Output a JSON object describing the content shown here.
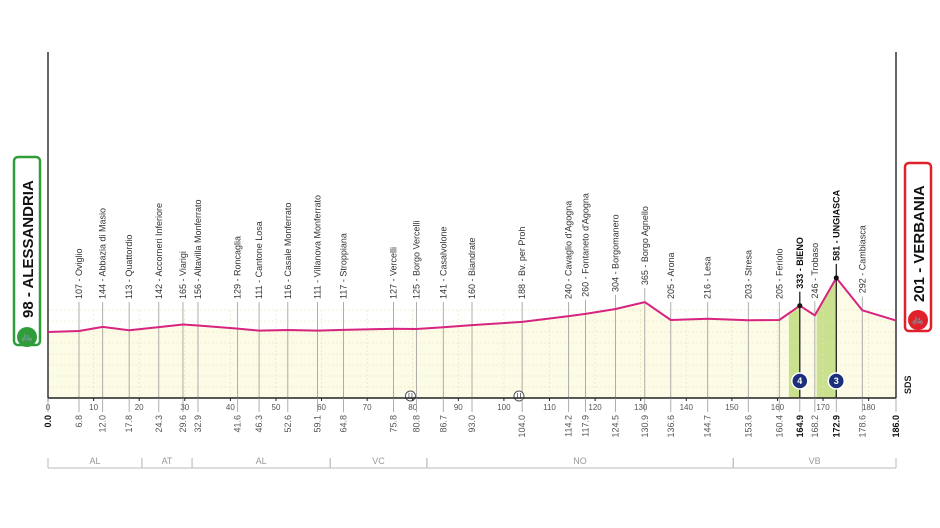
{
  "chart_data": {
    "type": "area",
    "xlabel": "",
    "ylabel": "",
    "xlim": [
      0,
      186
    ],
    "x_ticks": [
      0,
      10,
      20,
      30,
      40,
      50,
      60,
      70,
      80,
      90,
      100,
      110,
      120,
      130,
      140,
      150,
      160,
      170,
      180
    ],
    "grid": true,
    "line_color": "#d6247f",
    "fill_color": "#fbfbe6",
    "climb_fill_color": "#c9e08f",
    "start": {
      "label": "98 - ALESSANDRIA",
      "km": 0.0,
      "elevation": 98,
      "color": "#2e9d3a"
    },
    "finish": {
      "label": "201 - VERBANIA",
      "km": 186.0,
      "elevation": 201,
      "color": "#e0202a"
    },
    "points": [
      {
        "km": 0.0,
        "km_label": "0.0",
        "elevation": 98,
        "name": "",
        "bold": true
      },
      {
        "km": 6.8,
        "km_label": "6.8",
        "elevation": 107,
        "name": "107 - Oviglio"
      },
      {
        "km": 12.0,
        "km_label": "12.0",
        "elevation": 144,
        "name": "144 - Abbazia di Masio"
      },
      {
        "km": 17.8,
        "km_label": "17.8",
        "elevation": 113,
        "name": "113 - Quattordio"
      },
      {
        "km": 24.3,
        "km_label": "24.3",
        "elevation": 142,
        "name": "142 - Accorneri Inferiore"
      },
      {
        "km": 29.6,
        "km_label": "29.6",
        "elevation": 165,
        "name": "165 - Viarigi"
      },
      {
        "km": 32.9,
        "km_label": "32.9",
        "elevation": 156,
        "name": "156 - Altavilla Monferrato"
      },
      {
        "km": 41.6,
        "km_label": "41.6",
        "elevation": 129,
        "name": "129 - Roncaglia"
      },
      {
        "km": 46.3,
        "km_label": "46.3",
        "elevation": 111,
        "name": "111 - Cantone Losa"
      },
      {
        "km": 52.6,
        "km_label": "52.6",
        "elevation": 116,
        "name": "116 - Casale Monferrato"
      },
      {
        "km": 59.1,
        "km_label": "59.1",
        "elevation": 111,
        "name": "111 - Villanova Monferrato"
      },
      {
        "km": 64.8,
        "km_label": "64.8",
        "elevation": 117,
        "name": "117 - Stroppiana"
      },
      {
        "km": 75.8,
        "km_label": "75.8",
        "elevation": 127,
        "name": "127 - Vercelli"
      },
      {
        "km": 80.8,
        "km_label": "80.8",
        "elevation": 125,
        "name": "125 - Borgo Vercelli"
      },
      {
        "km": 86.7,
        "km_label": "86.7",
        "elevation": 141,
        "name": "141 - Casalvolone"
      },
      {
        "km": 93.0,
        "km_label": "93.0",
        "elevation": 160,
        "name": "160 - Biandrate"
      },
      {
        "km": 104.0,
        "km_label": "104.0",
        "elevation": 188,
        "name": "188 - Bv. per Proh"
      },
      {
        "km": 114.2,
        "km_label": "114.2",
        "elevation": 240,
        "name": "240 - Cavaglio d'Agogna"
      },
      {
        "km": 117.9,
        "km_label": "117.9",
        "elevation": 260,
        "name": "260 - Fontaneto d'Agogna"
      },
      {
        "km": 124.5,
        "km_label": "124.5",
        "elevation": 304,
        "name": "304 - Borgomanero"
      },
      {
        "km": 130.9,
        "km_label": "130.9",
        "elevation": 365,
        "name": "365 - Borgo Agnello"
      },
      {
        "km": 136.6,
        "km_label": "136.6",
        "elevation": 205,
        "name": "205 - Arona"
      },
      {
        "km": 144.7,
        "km_label": "144.7",
        "elevation": 216,
        "name": "216 - Lesa"
      },
      {
        "km": 153.6,
        "km_label": "153.6",
        "elevation": 203,
        "name": "203 - Stresa"
      },
      {
        "km": 160.4,
        "km_label": "160.4",
        "elevation": 205,
        "name": "205 - Feriolo"
      },
      {
        "km": 164.9,
        "km_label": "164.9",
        "elevation": 333,
        "name": "333 - BIENO",
        "bold": true,
        "climb_category": "4"
      },
      {
        "km": 168.2,
        "km_label": "168.2",
        "elevation": 246,
        "name": "246 - Trobaso"
      },
      {
        "km": 172.9,
        "km_label": "172.9",
        "elevation": 581,
        "name": "581 - UNGIASCA",
        "bold": true,
        "climb_category": "3"
      },
      {
        "km": 178.6,
        "km_label": "178.6",
        "elevation": 292,
        "name": "292 - Cambiasca"
      },
      {
        "km": 186.0,
        "km_label": "186.0",
        "elevation": 201,
        "name": "",
        "bold": true
      }
    ],
    "climbs": [
      {
        "category": "4",
        "from_km": 162.5,
        "to_km": 164.9,
        "color": "#1c2f7a"
      },
      {
        "category": "3",
        "from_km": 168.6,
        "to_km": 172.9,
        "color": "#1c2f7a"
      }
    ],
    "sprints_km": [
      79.5,
      103.3
    ],
    "provinces": [
      {
        "code": "AL",
        "from_km": 0,
        "to_km": 20.6
      },
      {
        "code": "AT",
        "from_km": 20.6,
        "to_km": 31.6
      },
      {
        "code": "AL",
        "from_km": 31.6,
        "to_km": 61.9
      },
      {
        "code": "VC",
        "from_km": 61.9,
        "to_km": 83.1
      },
      {
        "code": "NO",
        "from_km": 83.1,
        "to_km": 150.3
      },
      {
        "code": "VB",
        "from_km": 150.3,
        "to_km": 186
      }
    ],
    "credit": "SDS"
  }
}
